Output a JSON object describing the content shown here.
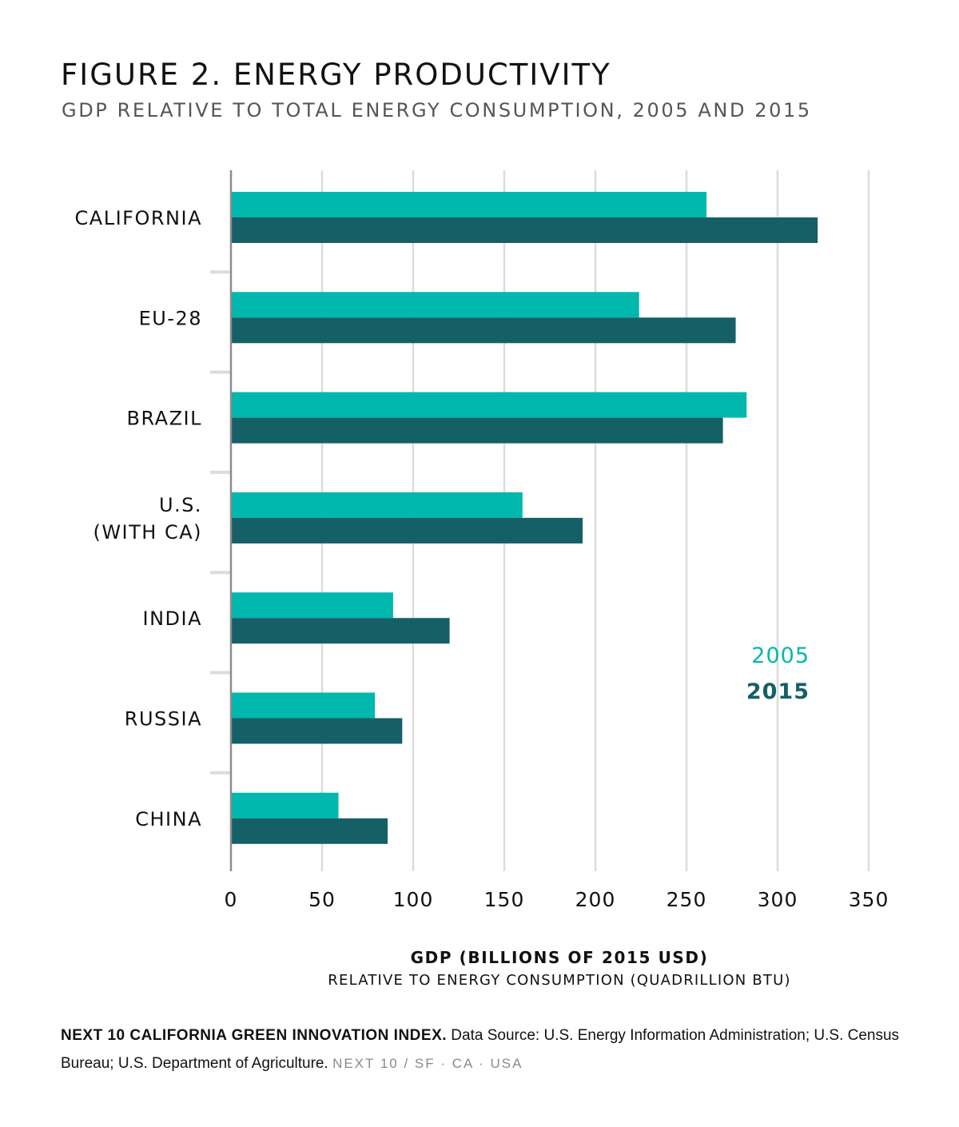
{
  "title": "FIGURE 2. ENERGY PRODUCTIVITY",
  "subtitle": "GDP RELATIVE TO TOTAL ENERGY CONSUMPTION, 2005 AND 2015",
  "colors": {
    "s2005": "#00b8ad",
    "s2015": "#146066",
    "grid": "#dcdcdc",
    "axis": "#8c8c8c"
  },
  "chart_data": {
    "type": "bar",
    "orientation": "horizontal",
    "categories": [
      "CALIFORNIA",
      "EU-28",
      "BRAZIL",
      "U.S.\n(WITH CA)",
      "INDIA",
      "RUSSIA",
      "CHINA"
    ],
    "series": [
      {
        "name": "2005",
        "values": [
          261,
          224,
          283,
          160,
          89,
          79,
          59
        ]
      },
      {
        "name": "2015",
        "values": [
          322,
          277,
          270,
          193,
          120,
          94,
          86
        ]
      }
    ],
    "xlim": [
      0,
      350
    ],
    "xticks": [
      0,
      50,
      100,
      150,
      200,
      250,
      300,
      350
    ],
    "xlabel": "GDP (BILLIONS OF 2015 USD)",
    "xlabel2": "RELATIVE TO ENERGY CONSUMPTION (QUADRILLION BTU)",
    "grid": true,
    "legend_position": "right"
  },
  "footer": {
    "brand": "NEXT 10 CALIFORNIA GREEN INNOVATION INDEX.",
    "source": " Data Source: U.S. Energy Information Administration; U.S. Census Bureau; U.S. Department of Agriculture.",
    "tag": "NEXT 10  /  SF · CA · USA"
  }
}
